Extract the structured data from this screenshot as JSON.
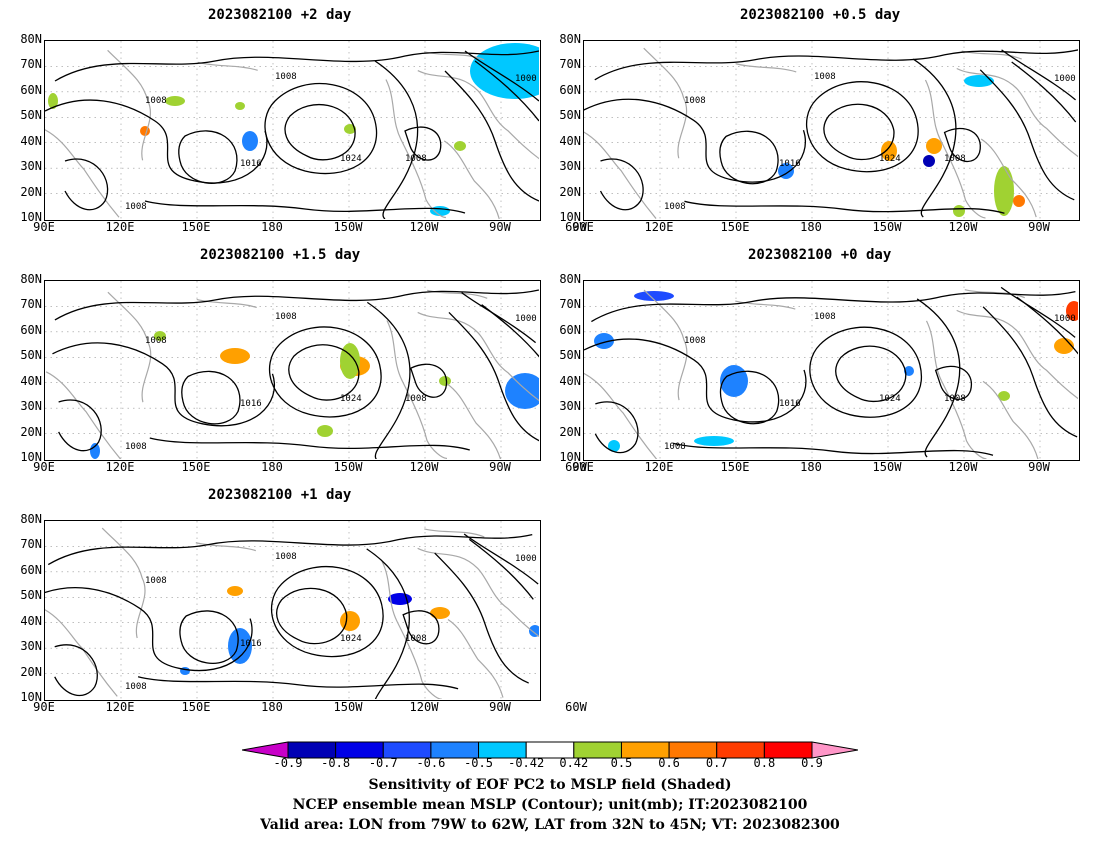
{
  "panels": [
    {
      "title": "2023082100 +2 day"
    },
    {
      "title": "2023082100 +0.5 day"
    },
    {
      "title": "2023082100 +1.5 day"
    },
    {
      "title": "2023082100 +0 day"
    },
    {
      "title": "2023082100 +1 day"
    }
  ],
  "lat_labels": [
    "80N",
    "70N",
    "60N",
    "50N",
    "40N",
    "30N",
    "20N",
    "10N"
  ],
  "lon_labels": [
    "90E",
    "120E",
    "150E",
    "180",
    "150W",
    "120W",
    "90W",
    "60W"
  ],
  "contour_labels": [
    "1000",
    "1008",
    "1016",
    "1024"
  ],
  "colorbar": {
    "ticks": [
      "-0.9",
      "-0.8",
      "-0.7",
      "-0.6",
      "-0.5",
      "-0.42",
      "0.42",
      "0.5",
      "0.6",
      "0.7",
      "0.8",
      "0.9"
    ],
    "colors": [
      "#c800c8",
      "#0000b4",
      "#0000e6",
      "#1e4bff",
      "#1e82ff",
      "#00c8ff",
      "#ffffff",
      "#a0d232",
      "#ffa000",
      "#ff7800",
      "#ff3c00",
      "#ff0000",
      "#ff96c8"
    ]
  },
  "caption": {
    "line1": "Sensitivity of EOF PC2 to MSLP field (Shaded)",
    "line2": "NCEP ensemble mean MSLP (Contour); unit(mb); IT:2023082100",
    "line3": "Valid area: LON from 79W to 62W, LAT from 32N to 45N; VT: 2023082300"
  }
}
